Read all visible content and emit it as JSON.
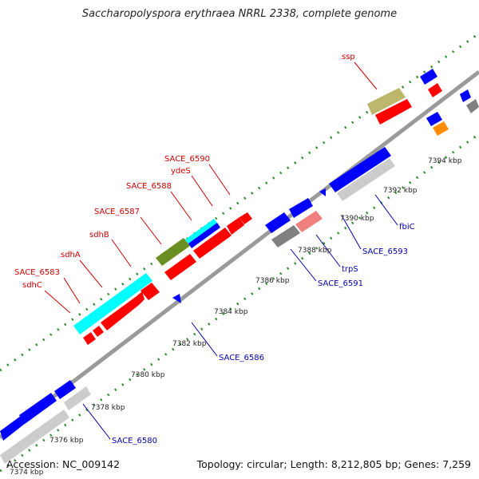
{
  "title": "Saccharopolyspora erythraea NRRL 2338, complete genome",
  "footer": {
    "accession": "Accession: NC_009142",
    "summary": "Topology: circular; Length: 8,212,805 bp; Genes: 7,259"
  },
  "colors": {
    "forward_label": "#cc0000",
    "reverse_label": "#0000aa",
    "backbone": "#999999",
    "tick": "#2e8b2e",
    "red": "#ff0000",
    "blue": "#0000ff",
    "cyan": "#00ffff",
    "olive": "#6b8e23",
    "khaki": "#bdb76b",
    "orange": "#ff8c00",
    "pink": "#f08080",
    "gray": "#808080",
    "lightgray": "#cccccc"
  },
  "scale_labels": [
    "7374 kbp",
    "7376 kbp",
    "7378 kbp",
    "7380 kbp",
    "7382 kbp",
    "7384 kbp",
    "7386 kbp",
    "7388 kbp",
    "7390 kbp",
    "7392 kbp",
    "7394 kbp"
  ],
  "gene_labels_forward": [
    "sdhC",
    "SACE_6583",
    "sdhA",
    "sdhB",
    "SACE_6587",
    "SACE_6588",
    "ydeS",
    "SACE_6590",
    "ssp"
  ],
  "gene_labels_reverse": [
    "SACE_6580",
    "SACE_6586",
    "SACE_6591",
    "trpS",
    "SACE_6593",
    "fbiC"
  ]
}
